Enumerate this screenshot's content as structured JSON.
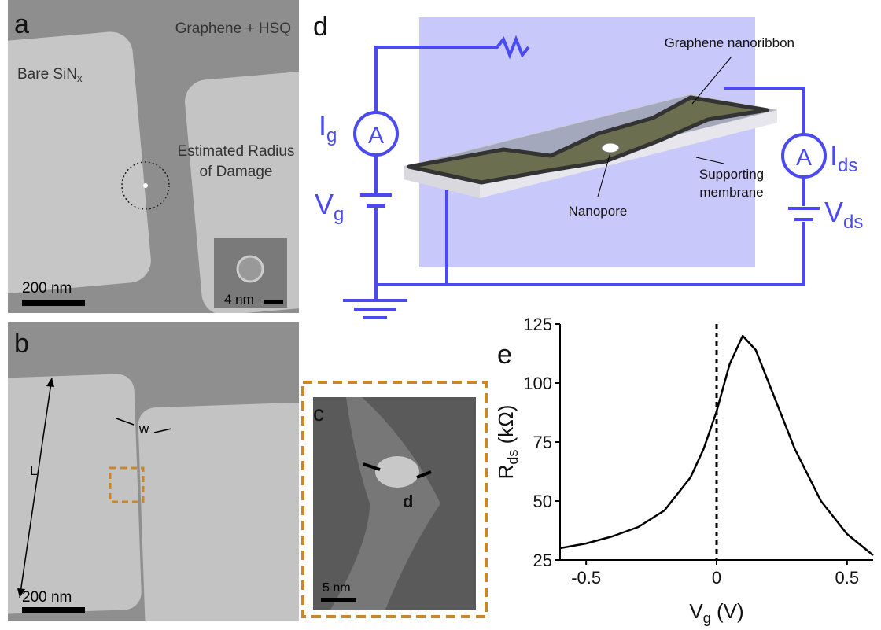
{
  "panel_a": {
    "label": "a",
    "top_text": "Graphene + HSQ",
    "left_text": {
      "main": "Bare SiN",
      "sub": "x"
    },
    "annotation": [
      "Estimated Radius",
      "of Damage"
    ],
    "scale_bar": "200 nm",
    "inset_scale_bar": "4 nm"
  },
  "panel_b": {
    "label": "b",
    "length_label": "L",
    "width_label": "w",
    "scale_bar": "200 nm"
  },
  "panel_c": {
    "label": "c",
    "diameter_label": "d",
    "scale_bar": "5 nm"
  },
  "panel_d": {
    "label": "d",
    "ribbon_label": "Graphene nanoribbon",
    "pore_label": "Nanopore",
    "membrane_label": [
      "Supporting",
      "membrane"
    ],
    "ammeter": "A",
    "gate_current": {
      "main": "I",
      "sub": "g"
    },
    "gate_voltage": {
      "main": "V",
      "sub": "g"
    },
    "ds_current": {
      "main": "I",
      "sub": "ds"
    },
    "ds_voltage": {
      "main": "V",
      "sub": "ds"
    }
  },
  "chart_data": {
    "type": "line",
    "panel_label": "e",
    "xlabel": {
      "main": "V",
      "sub": "g",
      "unit": " (V)"
    },
    "ylabel": {
      "main": "R",
      "sub": "ds",
      "unit": " (kΩ)"
    },
    "x": [
      -0.6,
      -0.5,
      -0.4,
      -0.3,
      -0.2,
      -0.1,
      -0.05,
      0,
      0.05,
      0.1,
      0.15,
      0.2,
      0.3,
      0.4,
      0.5,
      0.6
    ],
    "series": [
      {
        "color": "#000000",
        "values": [
          30,
          32,
          35,
          39,
          46,
          60,
          72,
          88,
          108,
          120,
          114,
          100,
          72,
          50,
          36,
          27
        ]
      }
    ],
    "xlim": [
      -0.6,
      0.6
    ],
    "xticks": [
      -0.5,
      0,
      0.5
    ],
    "ylim": [
      25,
      125
    ],
    "yticks": [
      25,
      50,
      75,
      100,
      125
    ],
    "vline": 0
  }
}
